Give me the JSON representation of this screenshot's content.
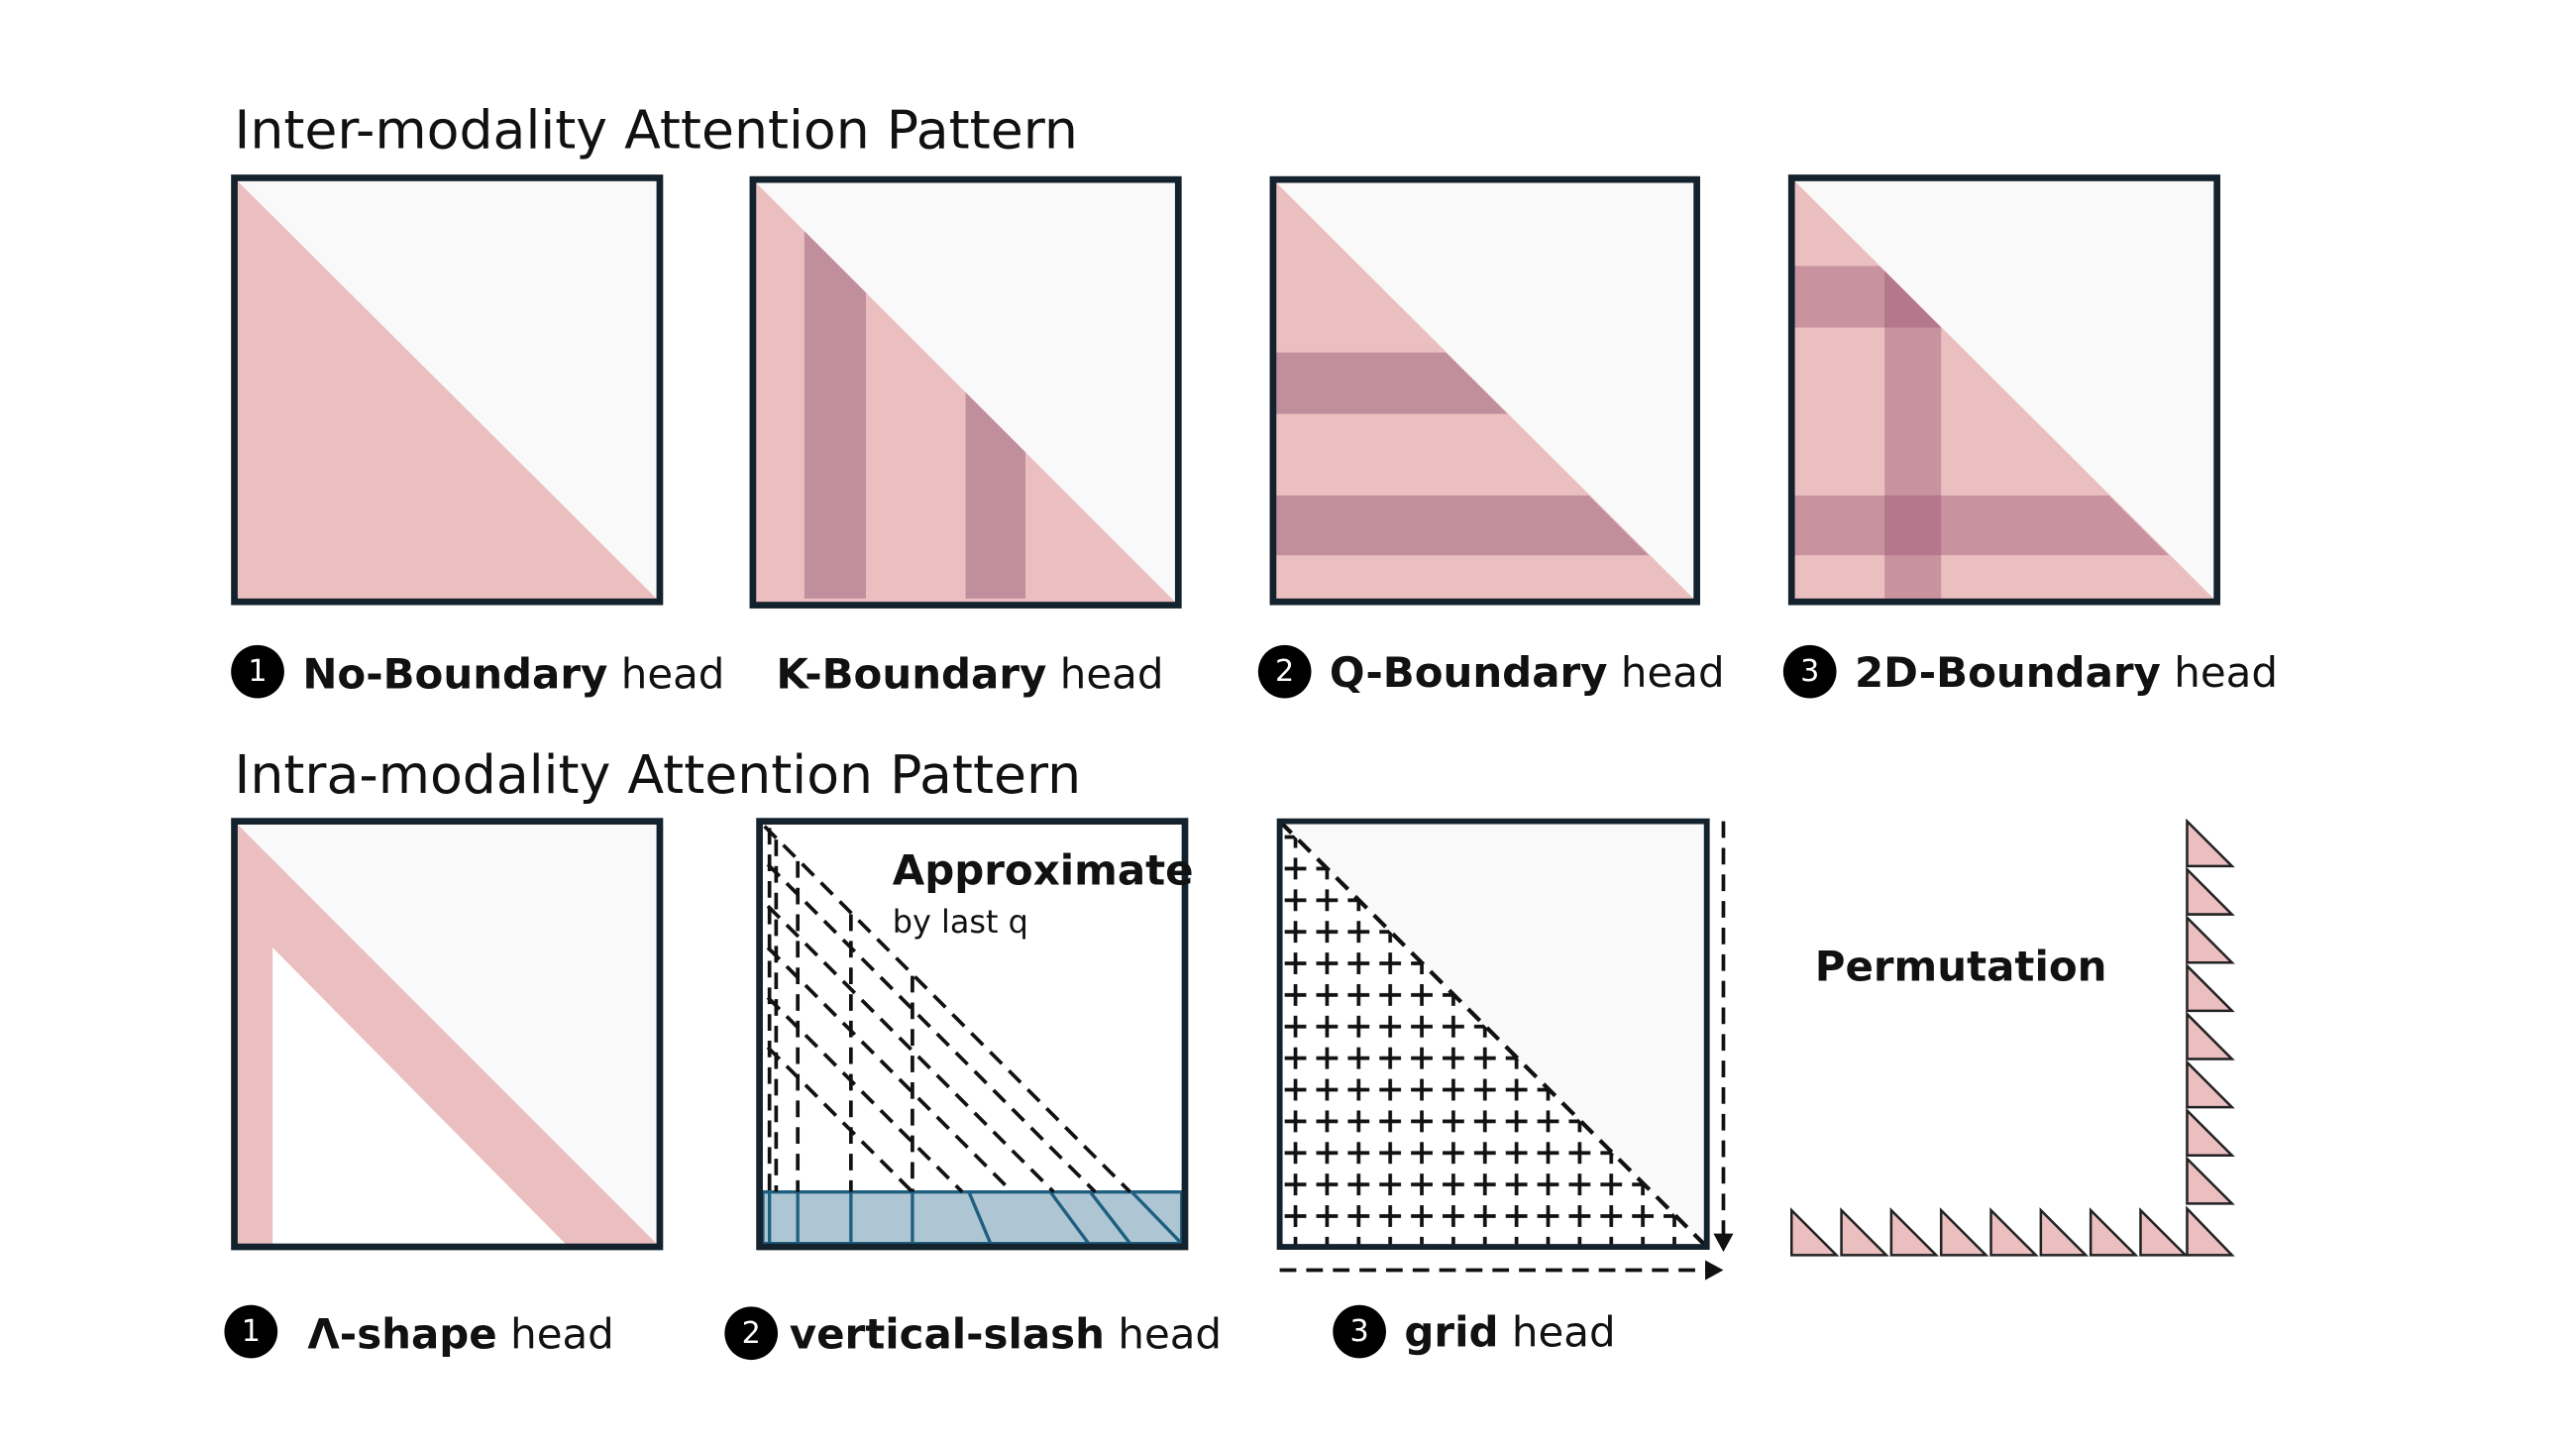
{
  "inter": {
    "title": "Inter-modality Attention Pattern",
    "heads": [
      {
        "badge": "1",
        "name": "No-Boundary",
        "suffix": "head"
      },
      {
        "name": "K-Boundary",
        "suffix": "head"
      },
      {
        "badge": "2",
        "name": "Q-Boundary",
        "suffix": "head"
      },
      {
        "badge": "3",
        "name": "2D-Boundary",
        "suffix": "head"
      }
    ]
  },
  "intra": {
    "title": "Intra-modality Attention Pattern",
    "heads": [
      {
        "badge": "1",
        "name": "Λ-shape",
        "suffix": "head"
      },
      {
        "badge": "2",
        "name": "vertical-slash",
        "suffix": "head"
      },
      {
        "badge": "3",
        "name": "grid",
        "suffix": "head"
      }
    ],
    "approximate": "Approximate",
    "by_last_q": "by last q",
    "permutation": "Permutation"
  }
}
